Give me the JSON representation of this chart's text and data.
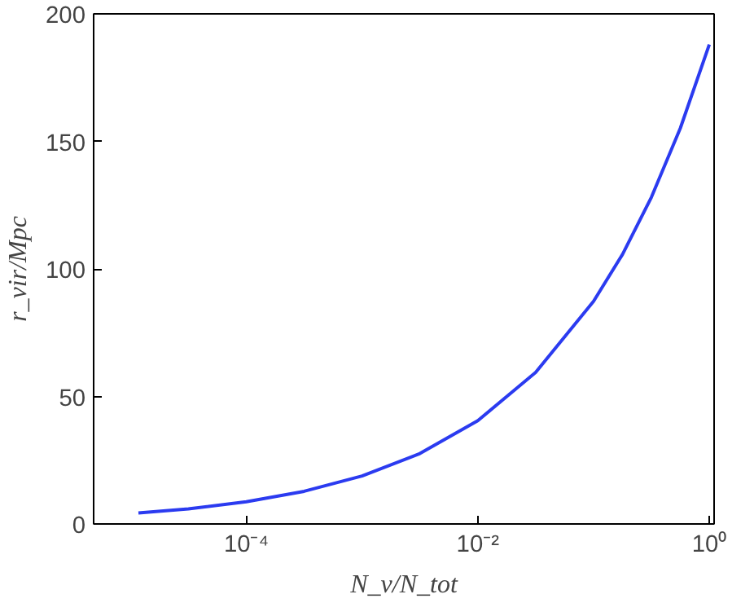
{
  "chart_data": {
    "type": "line",
    "xlabel": "N_ν/N_tot",
    "ylabel": "r_vir/Mpc",
    "log": "x",
    "x": [
      1.17e-05,
      3.16e-05,
      0.0001,
      0.000316,
      0.001,
      0.00316,
      0.01,
      0.0316,
      0.1,
      0.178,
      0.316,
      0.562,
      1
    ],
    "series": [
      {
        "color": "#2b3bf0",
        "values": [
          4.3,
          5.9,
          8.7,
          12.8,
          18.8,
          27.6,
          40.5,
          59.4,
          87.3,
          105.7,
          128.1,
          155.2,
          188
        ]
      }
    ],
    "xlim": [
      4.8e-06,
      1.1
    ],
    "xticks": [
      {
        "value": 0.0001,
        "label": "10⁻⁴"
      },
      {
        "value": 0.01,
        "label": "10⁻²"
      },
      {
        "value": 1,
        "label": "10⁰"
      }
    ],
    "ylim": [
      0,
      200
    ],
    "yticks": [
      0,
      50,
      100,
      150,
      200
    ],
    "grid": false,
    "marker": "none",
    "line_style": "solid"
  }
}
